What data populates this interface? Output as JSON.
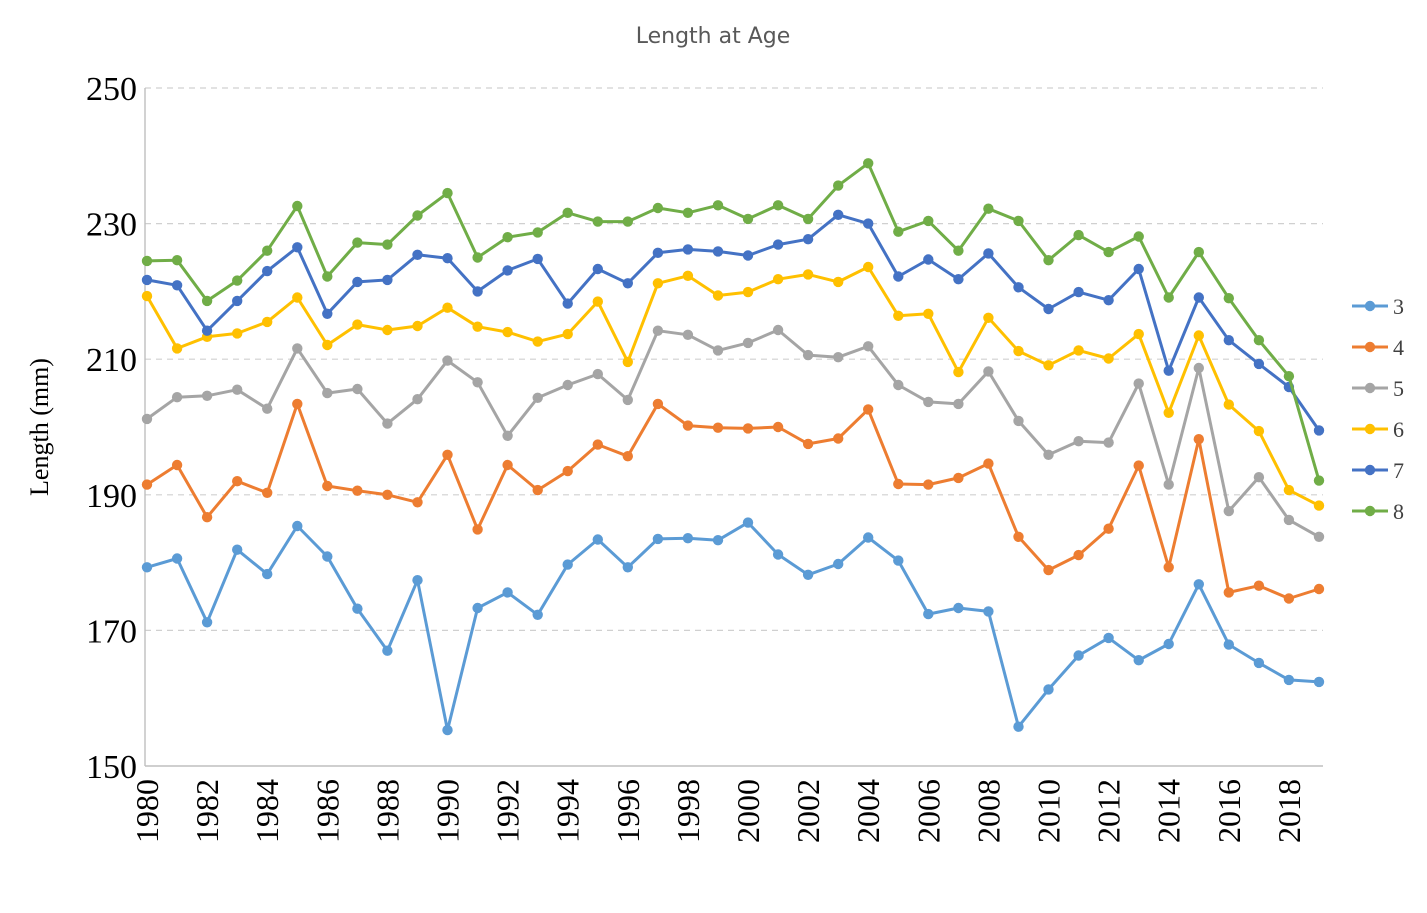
{
  "chart_data": {
    "type": "line",
    "title": "Length at Age",
    "xlabel": "",
    "ylabel": "Length (mm)",
    "ylim": [
      150,
      250
    ],
    "yticks": [
      150,
      170,
      190,
      210,
      230,
      250
    ],
    "xlim": [
      1980,
      2019
    ],
    "xticks": [
      1980,
      1982,
      1984,
      1986,
      1988,
      1990,
      1992,
      1994,
      1996,
      1998,
      2000,
      2002,
      2004,
      2006,
      2008,
      2010,
      2012,
      2014,
      2016,
      2018
    ],
    "grid": true,
    "legend_position": "right",
    "x": [
      1980,
      1981,
      1982,
      1983,
      1984,
      1985,
      1986,
      1987,
      1988,
      1989,
      1990,
      1991,
      1992,
      1993,
      1994,
      1995,
      1996,
      1997,
      1998,
      1999,
      2000,
      2001,
      2002,
      2003,
      2004,
      2005,
      2006,
      2007,
      2008,
      2009,
      2010,
      2011,
      2012,
      2013,
      2014,
      2015,
      2016,
      2017,
      2018,
      2019
    ],
    "series": [
      {
        "name": "3",
        "color": "#5b9bd5",
        "values": [
          179.3,
          180.6,
          171.2,
          181.9,
          178.3,
          185.4,
          180.9,
          173.2,
          167.0,
          177.4,
          155.3,
          173.3,
          175.6,
          172.3,
          179.7,
          183.4,
          179.3,
          183.5,
          183.6,
          183.3,
          185.9,
          181.2,
          178.2,
          179.8,
          183.7,
          180.3,
          172.4,
          173.3,
          172.8,
          155.8,
          161.3,
          166.3,
          168.9,
          165.6,
          168.0,
          176.8,
          167.9,
          165.2,
          162.7,
          162.4
        ]
      },
      {
        "name": "4",
        "color": "#ed7d31",
        "values": [
          191.5,
          194.4,
          186.7,
          192.0,
          190.3,
          203.4,
          191.3,
          190.6,
          190.0,
          188.9,
          195.9,
          184.9,
          194.4,
          190.7,
          193.5,
          197.4,
          195.7,
          203.4,
          200.2,
          199.9,
          199.8,
          200.0,
          197.5,
          198.3,
          202.6,
          191.6,
          191.5,
          192.5,
          194.6,
          183.8,
          178.9,
          181.1,
          185.0,
          194.3,
          179.3,
          198.2,
          175.6,
          176.6,
          174.7,
          176.1
        ]
      },
      {
        "name": "5",
        "color": "#a5a5a5",
        "values": [
          201.2,
          204.4,
          204.6,
          205.5,
          202.7,
          211.6,
          205.0,
          205.6,
          200.5,
          204.1,
          209.8,
          206.6,
          198.7,
          204.3,
          206.2,
          207.8,
          204.0,
          214.2,
          213.6,
          211.3,
          212.4,
          214.3,
          210.6,
          210.3,
          211.9,
          206.2,
          203.7,
          203.4,
          208.2,
          200.9,
          195.9,
          197.9,
          197.7,
          206.4,
          191.5,
          208.7,
          187.6,
          192.6,
          186.3,
          183.8
        ]
      },
      {
        "name": "6",
        "color": "#ffc000",
        "values": [
          219.3,
          211.6,
          213.3,
          213.8,
          215.5,
          219.1,
          212.1,
          215.1,
          214.3,
          214.9,
          217.6,
          214.8,
          214.0,
          212.6,
          213.7,
          218.5,
          209.6,
          221.2,
          222.3,
          219.4,
          219.9,
          221.8,
          222.5,
          221.4,
          223.6,
          216.4,
          216.7,
          208.1,
          216.1,
          211.2,
          209.1,
          211.3,
          210.1,
          213.7,
          202.1,
          213.5,
          203.3,
          199.4,
          190.7,
          188.4
        ]
      },
      {
        "name": "7",
        "color": "#4472c4",
        "values": [
          221.7,
          220.9,
          214.2,
          218.6,
          223.0,
          226.5,
          216.7,
          221.4,
          221.7,
          225.4,
          224.9,
          220.0,
          223.1,
          224.8,
          218.2,
          223.3,
          221.2,
          225.7,
          226.2,
          225.9,
          225.3,
          226.9,
          227.7,
          231.3,
          230.0,
          222.2,
          224.7,
          221.8,
          225.6,
          220.6,
          217.4,
          219.9,
          218.7,
          223.3,
          208.3,
          219.1,
          212.8,
          209.3,
          205.9,
          199.5
        ]
      },
      {
        "name": "8",
        "color": "#70ad47",
        "values": [
          224.5,
          224.6,
          218.6,
          221.6,
          226.0,
          232.6,
          222.2,
          227.2,
          226.9,
          231.2,
          234.5,
          225.0,
          228.0,
          228.7,
          231.6,
          230.3,
          230.3,
          232.3,
          231.6,
          232.7,
          230.7,
          232.7,
          230.7,
          235.6,
          238.9,
          228.8,
          230.4,
          226.0,
          232.2,
          230.4,
          224.6,
          228.3,
          225.8,
          228.1,
          219.1,
          225.8,
          219.0,
          212.8,
          207.5,
          192.1
        ]
      }
    ]
  }
}
